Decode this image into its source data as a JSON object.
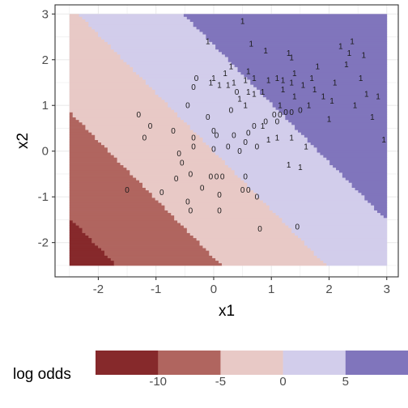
{
  "chart_data": {
    "type": "heatmap",
    "title": "",
    "xlabel": "x1",
    "ylabel": "x2",
    "xlim": [
      -2.75,
      3.2
    ],
    "ylim": [
      -2.75,
      3.2
    ],
    "x_ticks": [
      -2,
      -1,
      0,
      1,
      2,
      3
    ],
    "y_ticks": [
      -2,
      -1,
      0,
      1,
      2,
      3
    ],
    "x_tick_labels": [
      "-2",
      "-1",
      "0",
      "1",
      "2",
      "3"
    ],
    "y_tick_labels": [
      "-2",
      "-1",
      "0",
      "1",
      "2",
      "3"
    ],
    "grid": true,
    "background": "#ffffff",
    "region": {
      "xmin": -2.5,
      "xmax": 3.0,
      "ymin": -2.5,
      "ymax": 3.0
    },
    "log_odds_model": {
      "intercept": 0.0,
      "coef_x1": 2.75,
      "coef_x2": 2.15
    },
    "fill_bins": [
      {
        "min": -15,
        "max": -10,
        "color": "#86292b"
      },
      {
        "min": -10,
        "max": -5,
        "color": "#b0655f"
      },
      {
        "min": -5,
        "max": 0,
        "color": "#e8c9c6"
      },
      {
        "min": 0,
        "max": 5,
        "color": "#d2cdeb"
      },
      {
        "min": 5,
        "max": 10,
        "color": "#8075bc"
      }
    ],
    "legend": {
      "title": "log odds",
      "position": "bottom",
      "breaks": [
        -10,
        -5,
        0,
        5
      ],
      "labels": [
        "-10",
        "-5",
        "0",
        "5"
      ]
    },
    "points": [
      {
        "x": -1.5,
        "y": -0.85,
        "label": "0"
      },
      {
        "x": -1.3,
        "y": 0.8,
        "label": "0"
      },
      {
        "x": -1.2,
        "y": 0.3,
        "label": "0"
      },
      {
        "x": -1.1,
        "y": 0.55,
        "label": "0"
      },
      {
        "x": -0.9,
        "y": -0.9,
        "label": "0"
      },
      {
        "x": -0.7,
        "y": 0.45,
        "label": "0"
      },
      {
        "x": -0.65,
        "y": -0.6,
        "label": "0"
      },
      {
        "x": -0.6,
        "y": -0.05,
        "label": "0"
      },
      {
        "x": -0.55,
        "y": -0.25,
        "label": "0"
      },
      {
        "x": -0.45,
        "y": 1.0,
        "label": "0"
      },
      {
        "x": -0.45,
        "y": -1.1,
        "label": "0"
      },
      {
        "x": -0.4,
        "y": -1.3,
        "label": "0"
      },
      {
        "x": -0.4,
        "y": -0.5,
        "label": "0"
      },
      {
        "x": -0.35,
        "y": 0.1,
        "label": "0"
      },
      {
        "x": -0.35,
        "y": 0.3,
        "label": "0"
      },
      {
        "x": -0.35,
        "y": 1.4,
        "label": "0"
      },
      {
        "x": -0.3,
        "y": 1.6,
        "label": "0"
      },
      {
        "x": -0.2,
        "y": -0.8,
        "label": "0"
      },
      {
        "x": -0.1,
        "y": 0.75,
        "label": "0"
      },
      {
        "x": -0.05,
        "y": -0.55,
        "label": "0"
      },
      {
        "x": 0.0,
        "y": 0.45,
        "label": "0"
      },
      {
        "x": 0.0,
        "y": 0.05,
        "label": "0"
      },
      {
        "x": 0.05,
        "y": 0.35,
        "label": "0"
      },
      {
        "x": 0.05,
        "y": -0.55,
        "label": "0"
      },
      {
        "x": 0.1,
        "y": -1.3,
        "label": "0"
      },
      {
        "x": 0.1,
        "y": -0.95,
        "label": "0"
      },
      {
        "x": 0.15,
        "y": -0.55,
        "label": "0"
      },
      {
        "x": 0.25,
        "y": 0.1,
        "label": "0"
      },
      {
        "x": 0.3,
        "y": 0.9,
        "label": "0"
      },
      {
        "x": 0.35,
        "y": 0.35,
        "label": "0"
      },
      {
        "x": 0.4,
        "y": 1.3,
        "label": "0"
      },
      {
        "x": 0.45,
        "y": 0.0,
        "label": "0"
      },
      {
        "x": 0.5,
        "y": -0.85,
        "label": "0"
      },
      {
        "x": 0.55,
        "y": -0.55,
        "label": "0"
      },
      {
        "x": 0.55,
        "y": 0.2,
        "label": "0"
      },
      {
        "x": 0.6,
        "y": -0.85,
        "label": "0"
      },
      {
        "x": 0.6,
        "y": 0.4,
        "label": "0"
      },
      {
        "x": 0.7,
        "y": 0.55,
        "label": "0"
      },
      {
        "x": 0.75,
        "y": -1.0,
        "label": "0"
      },
      {
        "x": 0.75,
        "y": 0.1,
        "label": "0"
      },
      {
        "x": 0.8,
        "y": -1.7,
        "label": "0"
      },
      {
        "x": 0.9,
        "y": 0.65,
        "label": "0"
      },
      {
        "x": 1.05,
        "y": 0.8,
        "label": "0"
      },
      {
        "x": 1.1,
        "y": 0.65,
        "label": "0"
      },
      {
        "x": 1.15,
        "y": 0.8,
        "label": "0"
      },
      {
        "x": 1.25,
        "y": 0.85,
        "label": "0"
      },
      {
        "x": 1.35,
        "y": 0.85,
        "label": "0"
      },
      {
        "x": 1.5,
        "y": 0.9,
        "label": "0"
      },
      {
        "x": 1.45,
        "y": -1.65,
        "label": "0"
      },
      {
        "x": 0.45,
        "y": 1.15,
        "label": "1"
      },
      {
        "x": 0.55,
        "y": 1.0,
        "label": "1"
      },
      {
        "x": 0.6,
        "y": 1.3,
        "label": "1"
      },
      {
        "x": 0.7,
        "y": 1.25,
        "label": "1"
      },
      {
        "x": 0.85,
        "y": 0.55,
        "label": "1"
      },
      {
        "x": 0.95,
        "y": 0.25,
        "label": "1"
      },
      {
        "x": 1.1,
        "y": 0.3,
        "label": "1"
      },
      {
        "x": 1.15,
        "y": 1.0,
        "label": "1"
      },
      {
        "x": 1.2,
        "y": 1.35,
        "label": "1"
      },
      {
        "x": 1.3,
        "y": -0.3,
        "label": "1"
      },
      {
        "x": 1.35,
        "y": 0.3,
        "label": "1"
      },
      {
        "x": 1.4,
        "y": 1.2,
        "label": "1"
      },
      {
        "x": 1.5,
        "y": -0.35,
        "label": "1"
      },
      {
        "x": 1.55,
        "y": 1.45,
        "label": "1"
      },
      {
        "x": 1.6,
        "y": 0.1,
        "label": "1"
      },
      {
        "x": 1.65,
        "y": 1.0,
        "label": "1"
      },
      {
        "x": 1.7,
        "y": 1.6,
        "label": "1"
      },
      {
        "x": 1.75,
        "y": 1.35,
        "label": "1"
      },
      {
        "x": 1.8,
        "y": 1.85,
        "label": "1"
      },
      {
        "x": 1.9,
        "y": 1.2,
        "label": "1"
      },
      {
        "x": 2.0,
        "y": 0.7,
        "label": "1"
      },
      {
        "x": 2.05,
        "y": 1.1,
        "label": "1"
      },
      {
        "x": 2.1,
        "y": 1.5,
        "label": "1"
      },
      {
        "x": 2.2,
        "y": 2.3,
        "label": "1"
      },
      {
        "x": 2.3,
        "y": 1.9,
        "label": "1"
      },
      {
        "x": 2.35,
        "y": 2.15,
        "label": "1"
      },
      {
        "x": 2.4,
        "y": 2.4,
        "label": "1"
      },
      {
        "x": 2.45,
        "y": 1.0,
        "label": "1"
      },
      {
        "x": 2.55,
        "y": 1.6,
        "label": "1"
      },
      {
        "x": 2.6,
        "y": 2.1,
        "label": "1"
      },
      {
        "x": 2.65,
        "y": 1.25,
        "label": "1"
      },
      {
        "x": 2.75,
        "y": 0.75,
        "label": "1"
      },
      {
        "x": 2.85,
        "y": 1.2,
        "label": "1"
      },
      {
        "x": 2.95,
        "y": 0.25,
        "label": "1"
      },
      {
        "x": 1.3,
        "y": 2.15,
        "label": "1"
      },
      {
        "x": 1.35,
        "y": 2.05,
        "label": "1"
      },
      {
        "x": 0.9,
        "y": 2.2,
        "label": "1"
      },
      {
        "x": 0.5,
        "y": 2.85,
        "label": "1"
      },
      {
        "x": 0.65,
        "y": 2.35,
        "label": "1"
      },
      {
        "x": -0.1,
        "y": 2.4,
        "label": "1"
      },
      {
        "x": 0.0,
        "y": 1.6,
        "label": "1"
      },
      {
        "x": 0.1,
        "y": 1.45,
        "label": "1"
      },
      {
        "x": 0.2,
        "y": 1.7,
        "label": "1"
      },
      {
        "x": 0.25,
        "y": 1.45,
        "label": "1"
      },
      {
        "x": 0.3,
        "y": 1.85,
        "label": "1"
      },
      {
        "x": 0.35,
        "y": 1.5,
        "label": "1"
      },
      {
        "x": -0.05,
        "y": 1.5,
        "label": "1"
      },
      {
        "x": 0.6,
        "y": 1.75,
        "label": "1"
      },
      {
        "x": 0.7,
        "y": 1.6,
        "label": "1"
      },
      {
        "x": 0.55,
        "y": 1.55,
        "label": "1"
      },
      {
        "x": 0.85,
        "y": 1.3,
        "label": "1"
      },
      {
        "x": 0.95,
        "y": 1.55,
        "label": "1"
      },
      {
        "x": 1.1,
        "y": 1.6,
        "label": "1"
      },
      {
        "x": 1.2,
        "y": 1.55,
        "label": "1"
      },
      {
        "x": 1.35,
        "y": 1.5,
        "label": "1"
      },
      {
        "x": 1.4,
        "y": 1.7,
        "label": "1"
      }
    ]
  }
}
